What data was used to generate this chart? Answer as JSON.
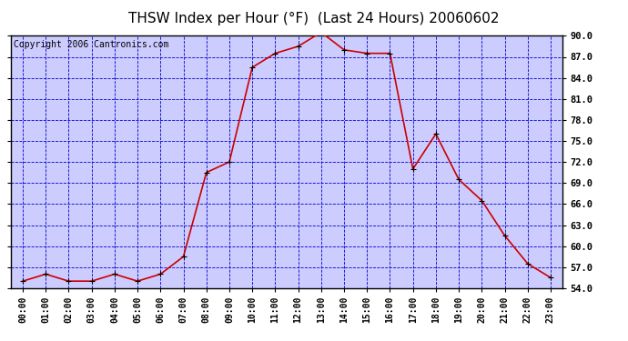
{
  "title": "THSW Index per Hour (°F)  (Last 24 Hours) 20060602",
  "copyright": "Copyright 2006 Cantronics.com",
  "hours": [
    "00:00",
    "01:00",
    "02:00",
    "03:00",
    "04:00",
    "05:00",
    "06:00",
    "07:00",
    "08:00",
    "09:00",
    "10:00",
    "11:00",
    "12:00",
    "13:00",
    "14:00",
    "15:00",
    "16:00",
    "17:00",
    "18:00",
    "19:00",
    "20:00",
    "21:00",
    "22:00",
    "23:00"
  ],
  "values": [
    55.0,
    56.0,
    55.0,
    55.0,
    56.0,
    55.0,
    56.0,
    58.5,
    70.5,
    72.0,
    85.5,
    87.5,
    88.5,
    90.5,
    88.0,
    87.5,
    87.5,
    71.0,
    76.0,
    69.5,
    66.5,
    61.5,
    57.5,
    55.5
  ],
  "ylim_min": 54.0,
  "ylim_max": 90.0,
  "yticks": [
    54.0,
    57.0,
    60.0,
    63.0,
    66.0,
    69.0,
    72.0,
    75.0,
    78.0,
    81.0,
    84.0,
    87.0,
    90.0
  ],
  "line_color": "#cc0000",
  "marker_color": "#000000",
  "plot_bg": "#ccccff",
  "grid_color": "#0000cc",
  "border_color": "#000000",
  "title_color": "#000000",
  "title_fontsize": 11,
  "copyright_fontsize": 7,
  "tick_fontsize": 7.5,
  "xtick_fontsize": 7
}
